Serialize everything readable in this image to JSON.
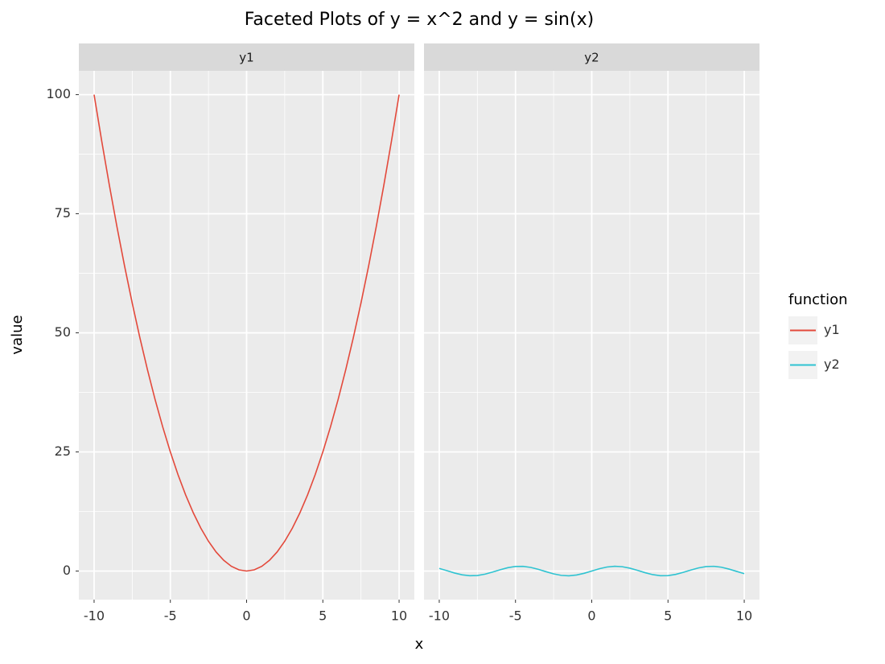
{
  "chart_data": {
    "type": "line",
    "title": "Faceted Plots of y = x^2 and y = sin(x)",
    "x_label": "x",
    "y_label": "value",
    "legend_title": "function",
    "x": [
      -10,
      -9.5,
      -9,
      -8.5,
      -8,
      -7.5,
      -7,
      -6.5,
      -6,
      -5.5,
      -5,
      -4.5,
      -4,
      -3.5,
      -3,
      -2.5,
      -2,
      -1.5,
      -1,
      -0.5,
      0,
      0.5,
      1,
      1.5,
      2,
      2.5,
      3,
      3.5,
      4,
      4.5,
      5,
      5.5,
      6,
      6.5,
      7,
      7.5,
      8,
      8.5,
      9,
      9.5,
      10
    ],
    "series": [
      {
        "name": "y1",
        "color": "#e3493b",
        "values": [
          100,
          90.25,
          81,
          72.25,
          64,
          56.25,
          49,
          42.25,
          36,
          30.25,
          25,
          20.25,
          16,
          12.25,
          9,
          6.25,
          4,
          2.25,
          1,
          0.25,
          0,
          0.25,
          1,
          2.25,
          4,
          6.25,
          9,
          12.25,
          16,
          20.25,
          25,
          30.25,
          36,
          42.25,
          49,
          56.25,
          64,
          72.25,
          81,
          90.25,
          100
        ]
      },
      {
        "name": "y2",
        "color": "#2fc3d1",
        "values": [
          0.544,
          0.075,
          -0.412,
          -0.798,
          -0.989,
          -0.938,
          -0.657,
          -0.215,
          0.279,
          0.706,
          0.959,
          0.978,
          0.757,
          0.351,
          -0.141,
          -0.598,
          -0.909,
          -0.997,
          -0.841,
          -0.479,
          0,
          0.479,
          0.841,
          0.997,
          0.909,
          0.598,
          0.141,
          -0.351,
          -0.757,
          -0.978,
          -0.959,
          -0.706,
          -0.279,
          0.215,
          0.657,
          0.938,
          0.989,
          0.798,
          0.412,
          -0.075,
          -0.544
        ]
      }
    ],
    "xlim": [
      -11,
      11
    ],
    "xticks": [
      -10,
      -5,
      0,
      5,
      10
    ],
    "ylim": [
      -6,
      105
    ],
    "yticks": [
      0,
      25,
      50,
      75,
      100
    ],
    "grid": true,
    "legend": "right"
  }
}
